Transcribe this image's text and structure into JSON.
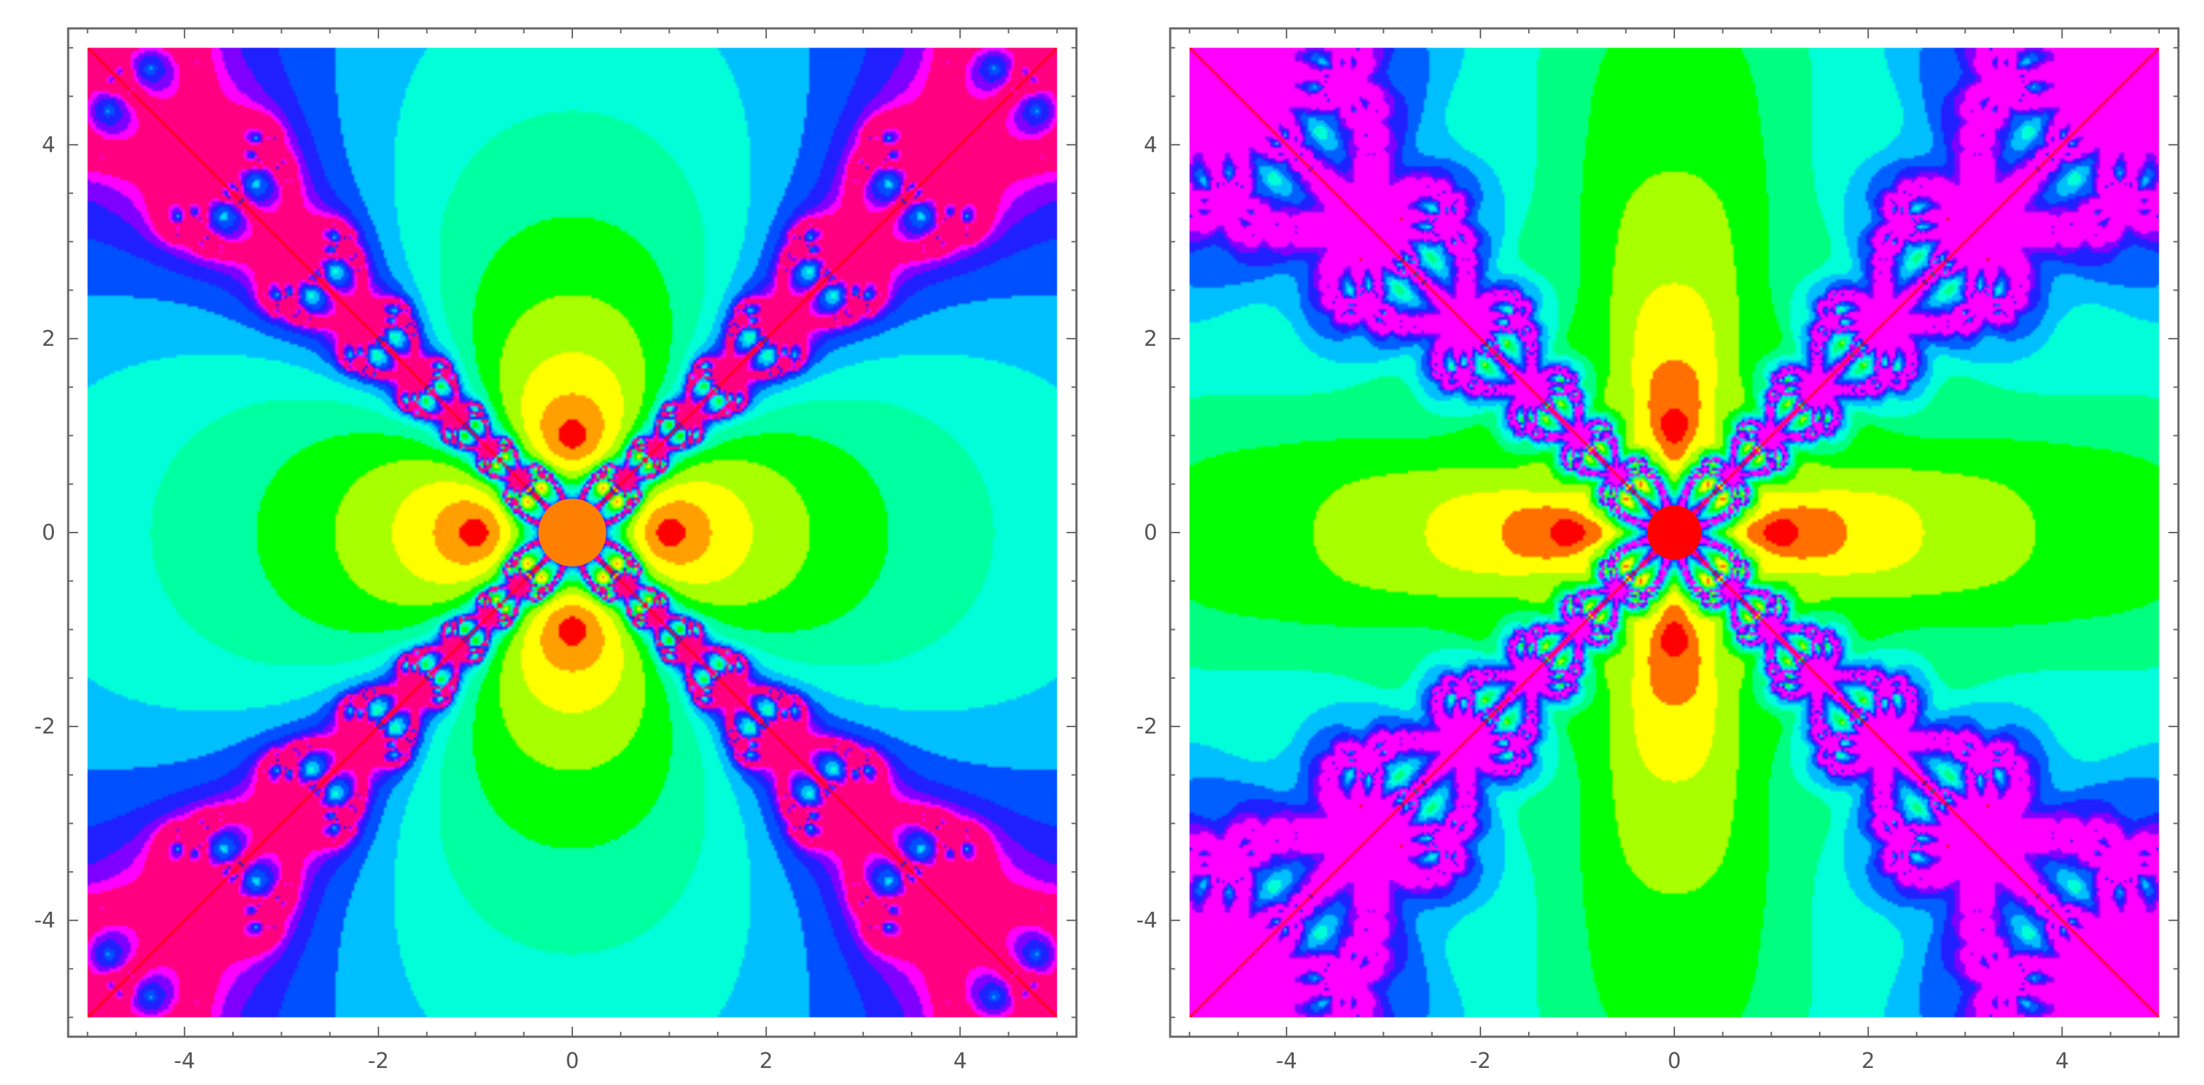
{
  "chart_data": [
    {
      "type": "heatmap",
      "title": "",
      "xlabel": "",
      "ylabel": "",
      "xlim": [
        -5.2,
        5.2
      ],
      "ylim": [
        -5.2,
        5.2
      ],
      "data_extent": [
        -5,
        5
      ],
      "x_ticks": [
        -4,
        -2,
        0,
        2,
        4
      ],
      "y_ticks": [
        -4,
        -2,
        0,
        2,
        4
      ],
      "x_tick_labels": [
        "-4",
        "-2",
        "0",
        "2",
        "4"
      ],
      "y_tick_labels": [
        "-4",
        "-2",
        "0",
        "2",
        "4"
      ],
      "grid": false,
      "legend": "none",
      "roots": [
        [
          1,
          0
        ],
        [
          -1,
          0
        ],
        [
          0,
          1
        ],
        [
          0,
          -1
        ]
      ],
      "center_disk": {
        "x": 0,
        "y": 0,
        "r": 0.35,
        "color": "#ff7f00"
      },
      "color_levels": [
        "#ff0000",
        "#ffa000",
        "#ffff00",
        "#a8ff00",
        "#00ff00",
        "#00ffa0",
        "#00ffd8",
        "#00bfff",
        "#0050ff",
        "#2020ff",
        "#8000ff",
        "#ff00ff",
        "#ff0080"
      ],
      "fractal_color": "#ff0000"
    },
    {
      "type": "heatmap",
      "title": "",
      "xlabel": "",
      "ylabel": "",
      "xlim": [
        -5.2,
        5.2
      ],
      "ylim": [
        -5.2,
        5.2
      ],
      "data_extent": [
        -5,
        5
      ],
      "x_ticks": [
        -4,
        -2,
        0,
        2,
        4
      ],
      "y_ticks": [
        -4,
        -2,
        0,
        2,
        4
      ],
      "x_tick_labels": [
        "-4",
        "-2",
        "0",
        "2",
        "4"
      ],
      "y_tick_labels": [
        "-4",
        "-2",
        "0",
        "2",
        "4"
      ],
      "grid": false,
      "legend": "none",
      "roots": [
        [
          1,
          0
        ],
        [
          -1,
          0
        ],
        [
          0,
          1
        ],
        [
          0,
          -1
        ]
      ],
      "center_disk": {
        "x": 0,
        "y": 0,
        "r": 0.28,
        "color": "#ff0000"
      },
      "color_levels": [
        "#ff0000",
        "#ff7000",
        "#ffff00",
        "#a8ff00",
        "#00ff00",
        "#00ff80",
        "#00ffd8",
        "#00bfff",
        "#0060ff",
        "#2020ff",
        "#8000ff",
        "#ff00ff"
      ],
      "fractal_color": "#ff0000"
    }
  ]
}
